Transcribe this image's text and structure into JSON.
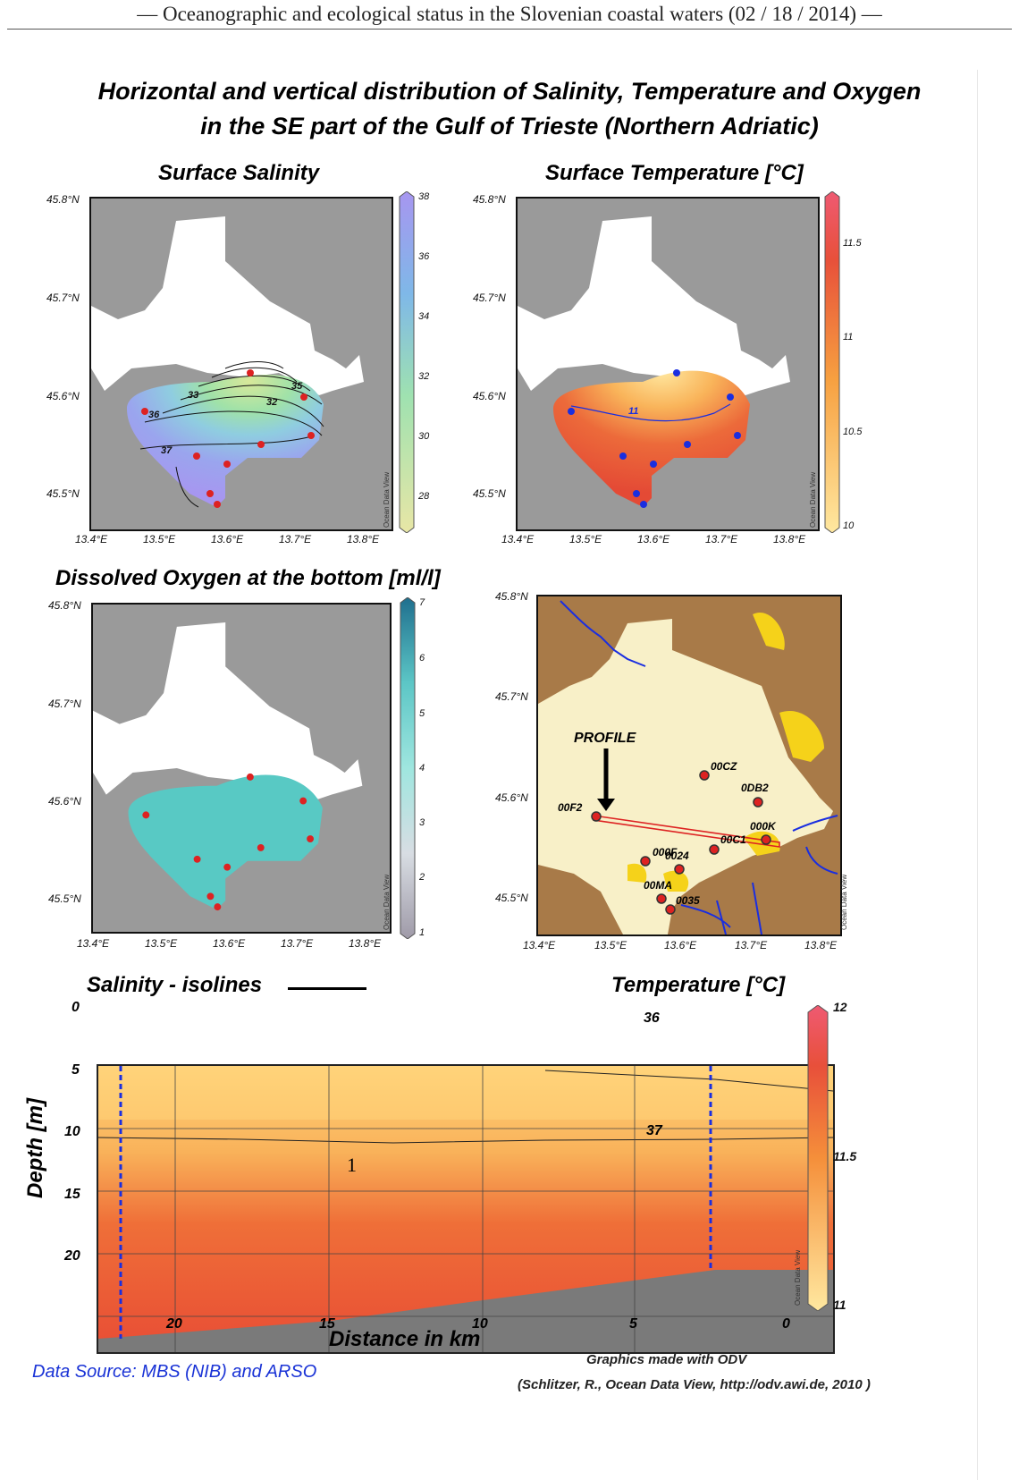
{
  "running_header": "— Oceanographic and ecological status in the Slovenian coastal waters (02 / 18 / 2014) —",
  "title": {
    "line1": "Horizontal and vertical distribution of Salinity, Temperature and Oxygen",
    "line2": "in the SE part of the Gulf of Trieste (Northern Adriatic)"
  },
  "lat_labels": [
    "45.8°N",
    "45.7°N",
    "45.6°N",
    "45.5°N"
  ],
  "lon_labels": [
    "13.4°E",
    "13.5°E",
    "13.6°E",
    "13.7°E",
    "13.8°E"
  ],
  "odv_tag": "Ocean Data View",
  "panels": {
    "salinity": {
      "title": "Surface Salinity",
      "colorbar_ticks": [
        "38",
        "36",
        "34",
        "32",
        "30",
        "28"
      ],
      "contour_labels": [
        "33",
        "32",
        "35",
        "36",
        "37"
      ],
      "colors": {
        "low": "#e8e6a6",
        "mid": "#9fe2b0",
        "high": "#a796f0"
      }
    },
    "temperature": {
      "title": "Surface Temperature [°C]",
      "colorbar_ticks": [
        "11.5",
        "11",
        "10.5",
        "10"
      ],
      "contour_labels": [
        "11"
      ],
      "colors": {
        "low": "#ffe8a0",
        "mid": "#f7a040",
        "high": "#e8503a"
      }
    },
    "oxygen": {
      "title": "Dissolved Oxygen at the bottom [ml/l]",
      "colorbar_ticks": [
        "7",
        "6",
        "5",
        "4",
        "3",
        "2",
        "1"
      ],
      "colors": {
        "low": "#9f9aa8",
        "mid": "#72d8cf",
        "high": "#1f6f8e"
      }
    },
    "station_map": {
      "lat_labels": [
        "45.8°N",
        "45.7°N",
        "45.6°N",
        "45.5°N"
      ],
      "lon_labels": [
        "13.4°E",
        "13.5°E",
        "13.6°E",
        "13.7°E",
        "13.8°E"
      ],
      "profile_label": "PROFILE",
      "stations": [
        "00CZ",
        "0DB2",
        "00F2",
        "000K",
        "00C1",
        "000F",
        "0024",
        "00MA",
        "0035"
      ],
      "colors": {
        "sea": "#f8f0c8",
        "land": "#a87a48",
        "urban": "#f5d21a",
        "river": "#1a2ee0"
      }
    }
  },
  "section": {
    "salinity_isolines_label": "Salinity - isolines",
    "temperature_label": "Temperature [°C]",
    "depth_title": "Depth [m]",
    "distance_title": "Distance in km",
    "depth_ticks": [
      "0",
      "5",
      "10",
      "15",
      "20"
    ],
    "distance_ticks": [
      "20",
      "15",
      "10",
      "5",
      "0"
    ],
    "isoline_labels": [
      "36",
      "37"
    ],
    "region_label": "1",
    "colorbar_ticks": [
      "12",
      "11.5",
      "11"
    ],
    "colors": {
      "warm": "#e8503a",
      "cool": "#ffd37a",
      "hot": "#ef5a72",
      "bottom": "#7a7a7a"
    }
  },
  "footer": {
    "data_source": "Data Source: MBS (NIB) and ARSO",
    "graphics_credit": "Graphics made with ODV",
    "citation": "(Schlitzer, R., Ocean Data View, http://odv.awi.de, 2010 )"
  }
}
